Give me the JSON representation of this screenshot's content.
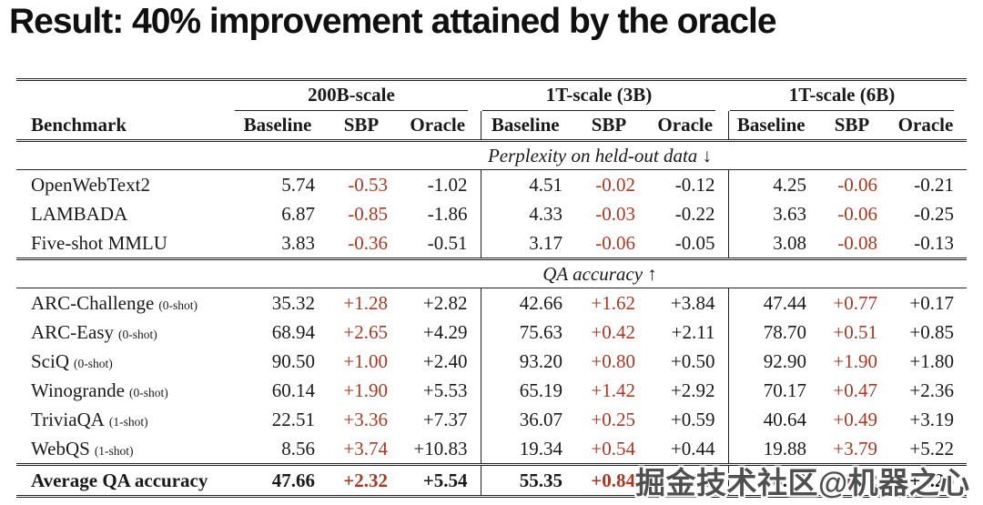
{
  "title": "Result: 40% improvement attained by the oracle",
  "watermark": "掘金技术社区@机器之心",
  "colors": {
    "sbp_red": "#a93820",
    "text": "#1a1a1a",
    "rule": "#222222"
  },
  "table": {
    "benchmark_header": "Benchmark",
    "groups": [
      {
        "label": "200B-scale"
      },
      {
        "label": "1T-scale (3B)"
      },
      {
        "label": "1T-scale (6B)"
      }
    ],
    "sub_headers": [
      "Baseline",
      "SBP",
      "Oracle"
    ],
    "sections": [
      {
        "label": "Perplexity on held-out data ↓",
        "rows": [
          {
            "name": "OpenWebText2",
            "shot": "",
            "values": [
              "5.74",
              "-0.53",
              "-1.02",
              "4.51",
              "-0.02",
              "-0.12",
              "4.25",
              "-0.06",
              "-0.21"
            ]
          },
          {
            "name": "LAMBADA",
            "shot": "",
            "values": [
              "6.87",
              "-0.85",
              "-1.86",
              "4.33",
              "-0.03",
              "-0.22",
              "3.63",
              "-0.06",
              "-0.25"
            ]
          },
          {
            "name": "Five-shot MMLU",
            "shot": "",
            "values": [
              "3.83",
              "-0.36",
              "-0.51",
              "3.17",
              "-0.06",
              "-0.05",
              "3.08",
              "-0.08",
              "-0.13"
            ]
          }
        ]
      },
      {
        "label": "QA accuracy ↑",
        "rows": [
          {
            "name": "ARC-Challenge",
            "shot": "(0-shot)",
            "values": [
              "35.32",
              "+1.28",
              "+2.82",
              "42.66",
              "+1.62",
              "+3.84",
              "47.44",
              "+0.77",
              "+0.17"
            ]
          },
          {
            "name": "ARC-Easy",
            "shot": "(0-shot)",
            "values": [
              "68.94",
              "+2.65",
              "+4.29",
              "75.63",
              "+0.42",
              "+2.11",
              "78.70",
              "+0.51",
              "+0.85"
            ]
          },
          {
            "name": "SciQ",
            "shot": "(0-shot)",
            "values": [
              "90.50",
              "+1.00",
              "+2.40",
              "93.20",
              "+0.80",
              "+0.50",
              "92.90",
              "+1.90",
              "+1.80"
            ]
          },
          {
            "name": "Winogrande",
            "shot": "(0-shot)",
            "values": [
              "60.14",
              "+1.90",
              "+5.53",
              "65.19",
              "+1.42",
              "+2.92",
              "70.17",
              "+0.47",
              "+2.36"
            ]
          },
          {
            "name": "TriviaQA",
            "shot": "(1-shot)",
            "values": [
              "22.51",
              "+3.36",
              "+7.37",
              "36.07",
              "+0.25",
              "+0.59",
              "40.64",
              "+0.49",
              "+3.19"
            ]
          },
          {
            "name": "WebQS",
            "shot": "(1-shot)",
            "values": [
              "8.56",
              "+3.74",
              "+10.83",
              "19.34",
              "+0.54",
              "+0.44",
              "19.88",
              "+3.79",
              "+5.22"
            ]
          }
        ]
      }
    ],
    "footer": {
      "name": "Average QA accuracy",
      "values": [
        "47.66",
        "+2.32",
        "+5.54",
        "55.35",
        "+0.84",
        "+1.73",
        "58.29",
        "+1.32",
        "+2.26"
      ]
    }
  }
}
